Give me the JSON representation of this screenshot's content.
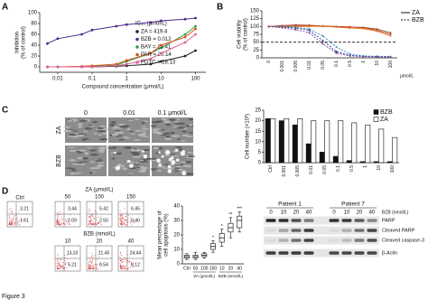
{
  "panel_labels": [
    "A",
    "B",
    "C",
    "D"
  ],
  "figure_caption": "Figure 3",
  "chart_data": [
    {
      "type": "line",
      "xscale": "log",
      "ylabel": [
        "Inhibition",
        "(% of control)"
      ],
      "xlabel": "Compound concentration (μmol/L)",
      "legend_title": "IC₅₀ (μmol/L)",
      "x": [
        0.005,
        0.01,
        0.05,
        0.1,
        0.5,
        1,
        5,
        10,
        50,
        100
      ],
      "xlim": [
        0.003,
        200
      ],
      "xticks": [
        0.01,
        0.1,
        1,
        10,
        100
      ],
      "ylim": [
        -10,
        100
      ],
      "yticks": [
        0,
        20,
        40,
        60,
        80,
        100
      ],
      "series": [
        {
          "name": "ZA = 419.4",
          "color": "#222222",
          "values": [
            0,
            0,
            0,
            0,
            1,
            2,
            5,
            10,
            20,
            30
          ]
        },
        {
          "name": "BZB = 0.012",
          "color": "#4b2a8c",
          "values": [
            43,
            52,
            60,
            68,
            75,
            78,
            82,
            85,
            88,
            90
          ]
        },
        {
          "name": "BAY = 13.41",
          "color": "#2e9e3e",
          "values": [
            0,
            0,
            0,
            1,
            3,
            10,
            25,
            35,
            60,
            75
          ]
        },
        {
          "name": "PAR = 20.14",
          "color": "#d9531e",
          "values": [
            0,
            0,
            1,
            2,
            5,
            12,
            25,
            40,
            55,
            70
          ]
        },
        {
          "name": "PDTC = 28.13",
          "color": "#e0609a",
          "values": [
            0,
            0,
            0,
            0,
            2,
            5,
            15,
            25,
            45,
            60
          ]
        }
      ]
    },
    {
      "type": "line",
      "ylabel": [
        "Cell viability",
        "(% of control)"
      ],
      "xlabel": "μmol/L",
      "categories": [
        "0",
        "0.001",
        "0.005",
        "0.01",
        "0.05",
        "0.1",
        "0.5",
        "1",
        "10",
        "100"
      ],
      "ylim": [
        0,
        150
      ],
      "yticks": [
        0,
        25,
        50,
        75,
        100,
        125,
        150
      ],
      "reference_line": 50,
      "series": [
        {
          "name": "ZA",
          "dash": false,
          "lines": [
            {
              "color": "#8b5a2b",
              "values": [
                100,
                100,
                102,
                101,
                100,
                99,
                98,
                97,
                92,
                80
              ]
            },
            {
              "color": "#c0392b",
              "values": [
                100,
                103,
                105,
                104,
                102,
                100,
                99,
                96,
                88,
                75
              ]
            },
            {
              "color": "#e67e22",
              "values": [
                100,
                98,
                99,
                100,
                101,
                98,
                95,
                93,
                85,
                70
              ]
            }
          ]
        },
        {
          "name": "BZB",
          "dash": true,
          "lines": [
            {
              "color": "#1f3a93",
              "values": [
                100,
                98,
                95,
                88,
                55,
                20,
                8,
                5,
                4,
                3
              ]
            },
            {
              "color": "#2e86c1",
              "values": [
                100,
                100,
                97,
                92,
                70,
                35,
                12,
                6,
                5,
                4
              ]
            },
            {
              "color": "#7d3c98",
              "values": [
                100,
                96,
                90,
                80,
                45,
                15,
                6,
                4,
                3,
                3
              ]
            }
          ]
        }
      ]
    },
    {
      "type": "bar",
      "ylabel": "Cell number (×10³)",
      "categories": [
        "Ctrl",
        "0.001",
        "0.005",
        "0.01",
        "0.05",
        "0.1",
        "0.5",
        "1",
        "10",
        "100"
      ],
      "ylim": [
        0,
        25
      ],
      "yticks": [
        0,
        5,
        10,
        15,
        20,
        25
      ],
      "series": [
        {
          "name": "BZB",
          "color": "#111111",
          "values": [
            21,
            20,
            18,
            9,
            5,
            3,
            1,
            0.5,
            0.5,
            0.5
          ]
        },
        {
          "name": "ZA",
          "color": "#ffffff",
          "values": [
            21,
            21,
            21,
            20,
            20,
            20,
            19,
            18,
            16,
            12
          ]
        }
      ]
    },
    {
      "type": "box",
      "ylabel": [
        "Mean percentage of",
        "cell apoptosis (%)"
      ],
      "ylim": [
        0,
        40
      ],
      "yticks": [
        0,
        10,
        20,
        30,
        40
      ],
      "groups": [
        {
          "categories": [
            "Ctrl"
          ],
          "boxes": [
            {
              "min": 3,
              "q1": 4,
              "median": 5,
              "q3": 6,
              "max": 7
            }
          ],
          "stars": [
            null
          ]
        },
        {
          "name": "ZA (μmol/L)",
          "categories": [
            "50",
            "100",
            "150"
          ],
          "boxes": [
            {
              "min": 3,
              "q1": 4,
              "median": 5,
              "q3": 6,
              "max": 8
            },
            {
              "min": 4,
              "q1": 5,
              "median": 6,
              "q3": 7,
              "max": 8
            },
            {
              "min": 8,
              "q1": 10,
              "median": 12,
              "q3": 14,
              "max": 16
            }
          ],
          "stars": [
            null,
            null,
            "*"
          ]
        },
        {
          "name": "BZB (nmol/L)",
          "categories": [
            "10",
            "20",
            "40"
          ],
          "boxes": [
            {
              "min": 12,
              "q1": 15,
              "median": 18,
              "q3": 21,
              "max": 24
            },
            {
              "min": 18,
              "q1": 22,
              "median": 25,
              "q3": 28,
              "max": 32
            },
            {
              "min": 22,
              "q1": 25,
              "median": 30,
              "q3": 33,
              "max": 36
            }
          ],
          "stars": [
            "*",
            "**",
            "***"
          ]
        }
      ]
    }
  ],
  "micrographs": {
    "columns": [
      "0",
      "0.01",
      "0.1 μmol/L"
    ],
    "rows": [
      "ZA",
      "BZB"
    ]
  },
  "flow": {
    "ctrl": {
      "label": "Ctrl",
      "quadrants": [
        "3.21",
        "1.61"
      ]
    },
    "za": {
      "title": "ZA (μmol/L)",
      "doses": [
        "50",
        "100",
        "150"
      ],
      "quadrants": [
        [
          "3.44",
          "2.09"
        ],
        [
          "5.42",
          "2.50"
        ],
        [
          "6.45",
          "3.40"
        ]
      ]
    },
    "bzb": {
      "title": "BZB (nmol/L)",
      "doses": [
        "10",
        "20",
        "40"
      ],
      "quadrants": [
        [
          "13.10",
          "5.21"
        ],
        [
          "21.45",
          "6.54"
        ],
        [
          "24.44",
          "8.12"
        ]
      ]
    }
  },
  "western_blot": {
    "patients": [
      "Patient 1",
      "Patient 7"
    ],
    "lanes": [
      "0",
      "10",
      "20",
      "40"
    ],
    "treatment": "BZB (nmol/L)",
    "rows": [
      "PARP",
      "Cleaved PARP",
      "Cleaved caspase-3",
      "β-Actin"
    ]
  }
}
